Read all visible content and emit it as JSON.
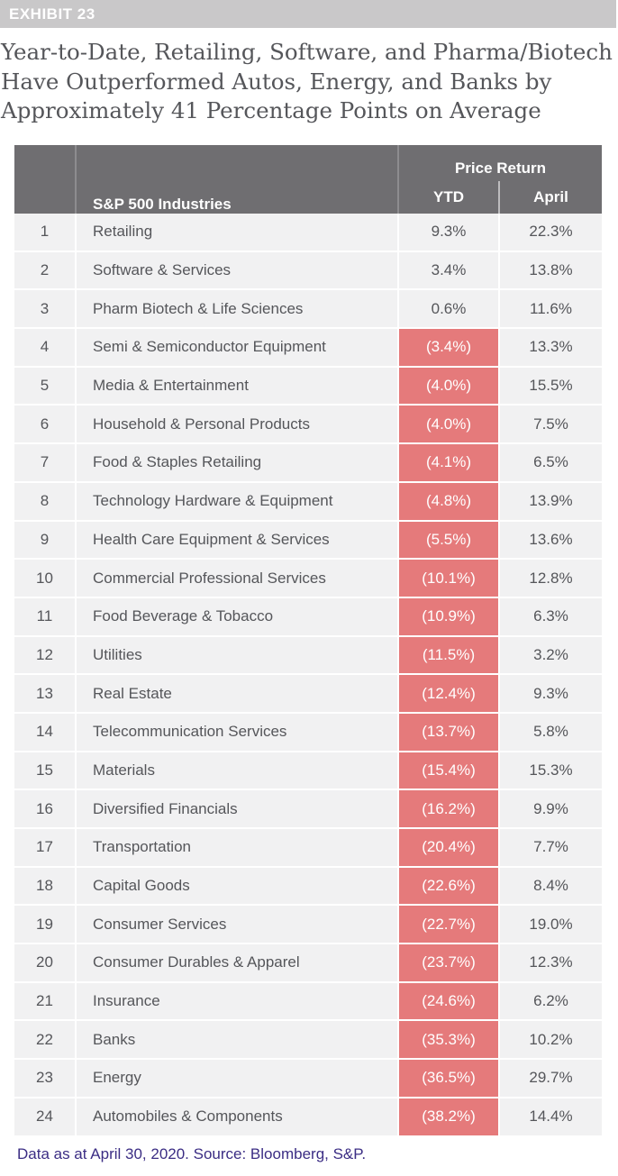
{
  "exhibit_label": "EXHIBIT 23",
  "title_lines": [
    "Year-to-Date, Retailing, Software, and Pharma/Biotech",
    "Have Outperformed Autos, Energy, and Banks by",
    "Approximately 41 Percentage Points on Average"
  ],
  "colors": {
    "header_bg": "#6f6e71",
    "row_bg": "#f1f1f2",
    "negative_bg": "#e57a7b",
    "exhibit_bar": "#c9c8c9",
    "footnote_text": "#3b2d84"
  },
  "chart_data": {
    "type": "table",
    "title": "Year-to-Date, Retailing, Software, and Pharma/Biotech Have Outperformed Autos, Energy, and Banks by Approximately 41 Percentage Points on Average",
    "group_header": "Price Return",
    "columns": [
      "",
      "S&P 500 Industries",
      "YTD",
      "April"
    ],
    "rows": [
      {
        "rank": "1",
        "industry": "Retailing",
        "ytd": "9.3%",
        "april": "22.3%",
        "ytd_value": 9.3,
        "april_value": 22.3
      },
      {
        "rank": "2",
        "industry": "Software & Services",
        "ytd": "3.4%",
        "april": "13.8%",
        "ytd_value": 3.4,
        "april_value": 13.8
      },
      {
        "rank": "3",
        "industry": "Pharm Biotech & Life Sciences",
        "ytd": "0.6%",
        "april": "11.6%",
        "ytd_value": 0.6,
        "april_value": 11.6
      },
      {
        "rank": "4",
        "industry": "Semi & Semiconductor Equipment",
        "ytd": "(3.4%)",
        "april": "13.3%",
        "ytd_value": -3.4,
        "april_value": 13.3
      },
      {
        "rank": "5",
        "industry": "Media & Entertainment",
        "ytd": "(4.0%)",
        "april": "15.5%",
        "ytd_value": -4.0,
        "april_value": 15.5
      },
      {
        "rank": "6",
        "industry": "Household & Personal Products",
        "ytd": "(4.0%)",
        "april": "7.5%",
        "ytd_value": -4.0,
        "april_value": 7.5
      },
      {
        "rank": "7",
        "industry": "Food & Staples Retailing",
        "ytd": "(4.1%)",
        "april": "6.5%",
        "ytd_value": -4.1,
        "april_value": 6.5
      },
      {
        "rank": "8",
        "industry": "Technology Hardware & Equipment",
        "ytd": "(4.8%)",
        "april": "13.9%",
        "ytd_value": -4.8,
        "april_value": 13.9
      },
      {
        "rank": "9",
        "industry": "Health Care Equipment & Services",
        "ytd": "(5.5%)",
        "april": "13.6%",
        "ytd_value": -5.5,
        "april_value": 13.6
      },
      {
        "rank": "10",
        "industry": "Commercial Professional Services",
        "ytd": "(10.1%)",
        "april": "12.8%",
        "ytd_value": -10.1,
        "april_value": 12.8
      },
      {
        "rank": "11",
        "industry": "Food Beverage & Tobacco",
        "ytd": "(10.9%)",
        "april": "6.3%",
        "ytd_value": -10.9,
        "april_value": 6.3
      },
      {
        "rank": "12",
        "industry": "Utilities",
        "ytd": "(11.5%)",
        "april": "3.2%",
        "ytd_value": -11.5,
        "april_value": 3.2
      },
      {
        "rank": "13",
        "industry": "Real Estate",
        "ytd": "(12.4%)",
        "april": "9.3%",
        "ytd_value": -12.4,
        "april_value": 9.3
      },
      {
        "rank": "14",
        "industry": "Telecommunication Services",
        "ytd": "(13.7%)",
        "april": "5.8%",
        "ytd_value": -13.7,
        "april_value": 5.8
      },
      {
        "rank": "15",
        "industry": "Materials",
        "ytd": "(15.4%)",
        "april": "15.3%",
        "ytd_value": -15.4,
        "april_value": 15.3
      },
      {
        "rank": "16",
        "industry": "Diversified Financials",
        "ytd": "(16.2%)",
        "april": "9.9%",
        "ytd_value": -16.2,
        "april_value": 9.9
      },
      {
        "rank": "17",
        "industry": "Transportation",
        "ytd": "(20.4%)",
        "april": "7.7%",
        "ytd_value": -20.4,
        "april_value": 7.7
      },
      {
        "rank": "18",
        "industry": "Capital Goods",
        "ytd": "(22.6%)",
        "april": "8.4%",
        "ytd_value": -22.6,
        "april_value": 8.4
      },
      {
        "rank": "19",
        "industry": "Consumer Services",
        "ytd": "(22.7%)",
        "april": "19.0%",
        "ytd_value": -22.7,
        "april_value": 19.0
      },
      {
        "rank": "20",
        "industry": "Consumer Durables & Apparel",
        "ytd": "(23.7%)",
        "april": "12.3%",
        "ytd_value": -23.7,
        "april_value": 12.3
      },
      {
        "rank": "21",
        "industry": "Insurance",
        "ytd": "(24.6%)",
        "april": "6.2%",
        "ytd_value": -24.6,
        "april_value": 6.2
      },
      {
        "rank": "22",
        "industry": "Banks",
        "ytd": "(35.3%)",
        "april": "10.2%",
        "ytd_value": -35.3,
        "april_value": 10.2
      },
      {
        "rank": "23",
        "industry": "Energy",
        "ytd": "(36.5%)",
        "april": "29.7%",
        "ytd_value": -36.5,
        "april_value": 29.7
      },
      {
        "rank": "24",
        "industry": "Automobiles & Components",
        "ytd": "(38.2%)",
        "april": "14.4%",
        "ytd_value": -38.2,
        "april_value": 14.4
      }
    ]
  },
  "footnote": "Data as at April 30, 2020. Source: Bloomberg, S&P."
}
